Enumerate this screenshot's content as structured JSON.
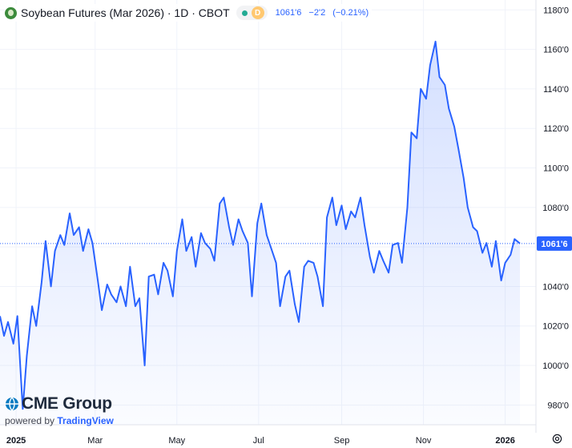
{
  "header": {
    "title": "Soybean Futures (Mar 2026) · 1D · CBOT",
    "badge_letter": "D",
    "last_price": "1061'6",
    "change": "−2'2",
    "change_pct": "(−0.21%)"
  },
  "watermark": {
    "brand": "CME Group",
    "powered_by": "powered by",
    "provider": "TradingView"
  },
  "price_label": "1061'6",
  "colors": {
    "line": "#2962ff",
    "accent": "#2962ff",
    "logo": "#3c8b3c",
    "badge": "#ffc870"
  },
  "icons": {
    "logo": "soybean-logo-icon",
    "settings": "settings-icon"
  },
  "chart_data": {
    "type": "area",
    "x_range": [
      "2024-12-20",
      "2026-01-12"
    ],
    "ylim": [
      970,
      1185
    ],
    "y_ticks": [
      {
        "value": 1180,
        "label": "1180'0"
      },
      {
        "value": 1160,
        "label": "1160'0"
      },
      {
        "value": 1140,
        "label": "1140'0"
      },
      {
        "value": 1120,
        "label": "1120'0"
      },
      {
        "value": 1100,
        "label": "1100'0"
      },
      {
        "value": 1080,
        "label": "1080'0"
      },
      {
        "value": 1060,
        "label": "1060'0"
      },
      {
        "value": 1040,
        "label": "1040'0"
      },
      {
        "value": 1020,
        "label": "1020'0"
      },
      {
        "value": 1000,
        "label": "1000'0"
      },
      {
        "value": 980,
        "label": "980'0"
      }
    ],
    "x_ticks": [
      {
        "date": "2025-01-01",
        "label": "2025",
        "bold": true
      },
      {
        "date": "2025-03-01",
        "label": "Mar"
      },
      {
        "date": "2025-05-01",
        "label": "May"
      },
      {
        "date": "2025-07-01",
        "label": "Jul"
      },
      {
        "date": "2025-09-01",
        "label": "Sep"
      },
      {
        "date": "2025-11-01",
        "label": "Nov"
      },
      {
        "date": "2026-01-01",
        "label": "2026",
        "bold": true
      }
    ],
    "last_value": 1061.75,
    "series": [
      {
        "x": [
          "2024-12-20",
          "2024-12-23",
          "2024-12-26",
          "2024-12-30",
          "2025-01-02",
          "2025-01-06",
          "2025-01-09",
          "2025-01-13",
          "2025-01-16",
          "2025-01-20",
          "2025-01-23",
          "2025-01-27",
          "2025-01-30",
          "2025-02-03",
          "2025-02-06",
          "2025-02-10",
          "2025-02-13",
          "2025-02-17",
          "2025-02-20",
          "2025-02-24",
          "2025-02-27",
          "2025-03-03",
          "2025-03-06",
          "2025-03-10",
          "2025-03-13",
          "2025-03-17",
          "2025-03-20",
          "2025-03-24",
          "2025-03-27",
          "2025-03-31",
          "2025-04-03",
          "2025-04-07",
          "2025-04-10",
          "2025-04-14",
          "2025-04-17",
          "2025-04-21",
          "2025-04-24",
          "2025-04-28",
          "2025-05-01",
          "2025-05-05",
          "2025-05-08",
          "2025-05-12",
          "2025-05-15",
          "2025-05-19",
          "2025-05-22",
          "2025-05-26",
          "2025-05-29",
          "2025-06-02",
          "2025-06-05",
          "2025-06-09",
          "2025-06-12",
          "2025-06-16",
          "2025-06-19",
          "2025-06-23",
          "2025-06-26",
          "2025-06-30",
          "2025-07-03",
          "2025-07-07",
          "2025-07-10",
          "2025-07-14",
          "2025-07-17",
          "2025-07-21",
          "2025-07-24",
          "2025-07-28",
          "2025-07-31",
          "2025-08-04",
          "2025-08-07",
          "2025-08-11",
          "2025-08-14",
          "2025-08-18",
          "2025-08-21",
          "2025-08-25",
          "2025-08-28",
          "2025-09-01",
          "2025-09-04",
          "2025-09-08",
          "2025-09-11",
          "2025-09-15",
          "2025-09-18",
          "2025-09-22",
          "2025-09-25",
          "2025-09-29",
          "2025-10-02",
          "2025-10-06",
          "2025-10-09",
          "2025-10-13",
          "2025-10-16",
          "2025-10-20",
          "2025-10-23",
          "2025-10-27",
          "2025-10-30",
          "2025-11-03",
          "2025-11-06",
          "2025-11-10",
          "2025-11-13",
          "2025-11-17",
          "2025-11-20",
          "2025-11-24",
          "2025-11-27",
          "2025-12-01",
          "2025-12-04",
          "2025-12-08",
          "2025-12-11",
          "2025-12-15",
          "2025-12-18",
          "2025-12-22",
          "2025-12-25",
          "2025-12-29",
          "2026-01-01",
          "2026-01-05",
          "2026-01-08",
          "2026-01-12"
        ],
        "values": [
          1025,
          1015,
          1022,
          1011,
          1025,
          978,
          1005,
          1030,
          1020,
          1042,
          1063,
          1040,
          1058,
          1066,
          1061,
          1077,
          1066,
          1070,
          1058,
          1069,
          1062,
          1043,
          1028,
          1041,
          1036,
          1032,
          1040,
          1030,
          1050,
          1030,
          1034,
          1000,
          1045,
          1046,
          1036,
          1052,
          1048,
          1035,
          1058,
          1074,
          1058,
          1065,
          1050,
          1067,
          1062,
          1059,
          1053,
          1082,
          1085,
          1070,
          1061,
          1074,
          1068,
          1062,
          1035,
          1072,
          1082,
          1066,
          1060,
          1052,
          1030,
          1045,
          1048,
          1031,
          1022,
          1050,
          1053,
          1052,
          1045,
          1030,
          1075,
          1085,
          1071,
          1081,
          1069,
          1078,
          1075,
          1085,
          1071,
          1055,
          1047,
          1058,
          1053,
          1047,
          1061,
          1062,
          1052,
          1080,
          1118,
          1115,
          1140,
          1135,
          1152,
          1164,
          1146,
          1142,
          1130,
          1121,
          1110,
          1095,
          1080,
          1070,
          1068,
          1057,
          1062,
          1050,
          1063,
          1043,
          1052,
          1056,
          1064,
          1061.75
        ]
      }
    ]
  }
}
